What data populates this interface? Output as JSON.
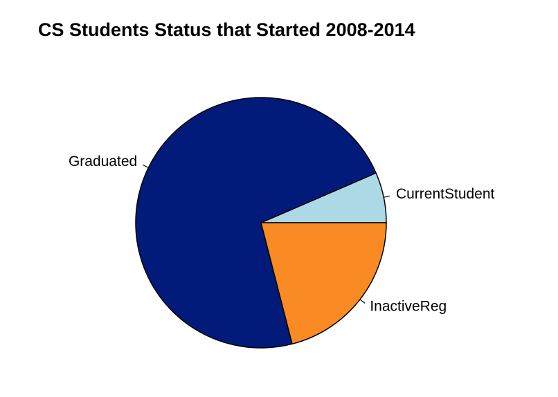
{
  "chart_data": {
    "type": "pie",
    "title": "CS Students Status that Started 2008-2014",
    "slices": [
      {
        "label": "CurrentStudent",
        "value": 6.5,
        "color": "#ADD8E6"
      },
      {
        "label": "Graduated",
        "value": 72.5,
        "color": "#021B7A"
      },
      {
        "label": "InactiveReg",
        "value": 21.0,
        "color": "#FA8A23"
      }
    ],
    "start_angle_deg": 0,
    "direction": "counterclockwise",
    "slice_border_color": "#000000",
    "legend": "none"
  }
}
